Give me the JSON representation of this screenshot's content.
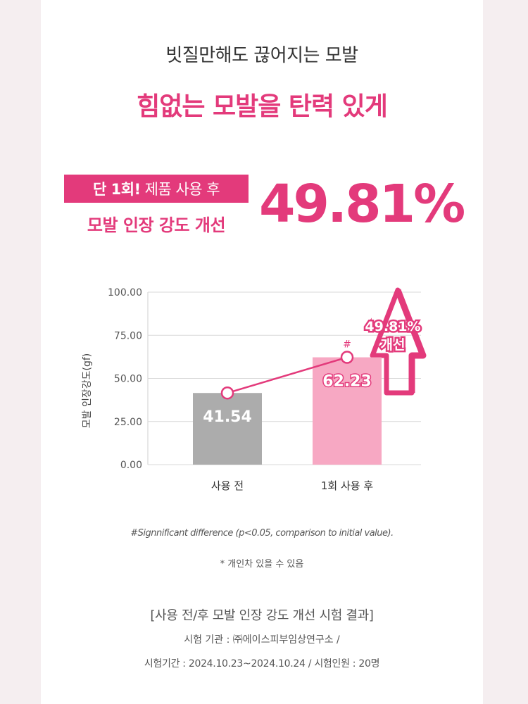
{
  "header": {
    "subtitle": "빗질만해도 끊어지는 모발",
    "headline": "힘없는 모발을 탄력 있게"
  },
  "claim": {
    "badge_bold": "단 1회!",
    "badge_rest": "제품 사용 후",
    "line2": "모발 인장 강도 개선",
    "percent": "49.81%"
  },
  "colors": {
    "accent": "#e33a7b",
    "bar_before": "#acacac",
    "bar_after": "#f7a8c3"
  },
  "chart_data": {
    "type": "bar",
    "categories": [
      "사용 전",
      "1회 사용 후"
    ],
    "values": [
      41.54,
      62.23
    ],
    "value_labels": [
      "41.54",
      "62.23"
    ],
    "ylabel": "모발 인장강도(gf)",
    "ylim": [
      0,
      100
    ],
    "yticks": [
      "100.00",
      "75.00",
      "50.00",
      "25.00",
      "0.00"
    ],
    "significance_mark": "#",
    "callout_line1": "49.81%",
    "callout_line2": "개선",
    "grid": true
  },
  "notes": {
    "significance": "#Signnificant difference (p<0.05, comparison to initial value).",
    "individual": "* 개인차 있을 수 있음",
    "test_title": "[사용 전/후 모발 인장 강도 개선 시험 결과]",
    "organization": "시험 기관 : ㈜에이스피부임상연구소 /",
    "period": "시험기간 : 2024.10.23~2024.10.24 / 시험인원 : 20명"
  }
}
